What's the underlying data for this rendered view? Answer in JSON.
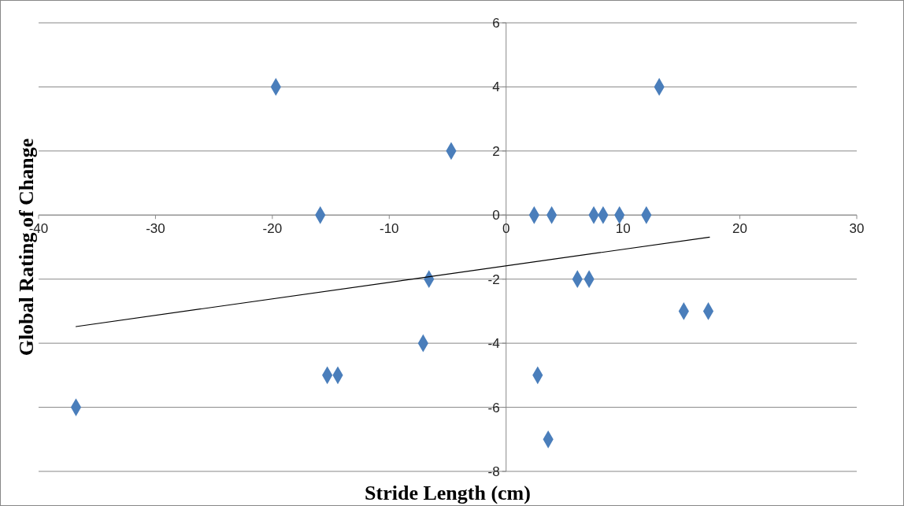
{
  "chart_data": {
    "type": "scatter",
    "xlabel": "Stride Length (cm)",
    "ylabel": "Global Rating of Change",
    "xlim": [
      -40,
      30
    ],
    "ylim": [
      -8,
      6
    ],
    "xticks": [
      -40,
      -30,
      -20,
      -10,
      0,
      10,
      20,
      30
    ],
    "yticks": [
      -8,
      -6,
      -4,
      -2,
      0,
      2,
      4,
      6
    ],
    "grid": "y",
    "series": [
      {
        "color": "#4a7ebb",
        "marker": "diamond",
        "x": [
          -36.8,
          -19.7,
          -4.7,
          -15.9,
          2.4,
          3.9,
          7.5,
          8.3,
          9.7,
          12.0,
          13.1,
          -6.6,
          6.1,
          7.1,
          15.2,
          17.3,
          -7.1,
          -15.3,
          -14.4,
          2.7,
          3.6
        ],
        "values": [
          -6,
          4,
          2,
          0,
          0,
          0,
          0,
          0,
          0,
          0,
          4,
          -2,
          -2,
          -2,
          -3,
          -3,
          -4,
          -5,
          -5,
          -5,
          -7
        ]
      },
      {
        "type": "line",
        "color": "#000000",
        "marker": "none",
        "line_style": "solid",
        "x": [
          -36.8,
          17.4
        ],
        "values": [
          -3.48,
          -0.69
        ]
      }
    ]
  }
}
